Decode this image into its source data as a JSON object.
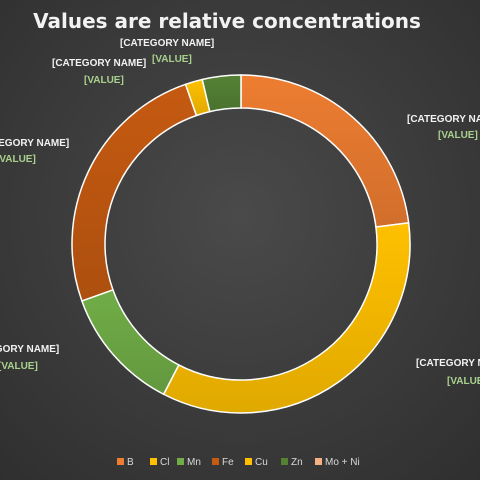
{
  "chart_data": {
    "type": "pie",
    "title": "Values are relative concentrations",
    "style": "doughnut",
    "legend_position": "bottom",
    "categories": [
      "B",
      "Cl",
      "Mn",
      "Fe",
      "Cu",
      "Zn",
      "Mo + Ni"
    ],
    "values": [
      22.5,
      33.8,
      11.7,
      24.6,
      1.6,
      3.6,
      0
    ],
    "colors": [
      "#ed7d31",
      "#ffc000",
      "#70ad47",
      "#c55a11",
      "#ffc000",
      "#548235",
      "#f4b183"
    ],
    "data_labels": [
      {
        "category": "[CATEGORY NAME]",
        "value": "[VALUE]"
      },
      {
        "category": "[CATEGORY NAME]",
        "value": "[VALUE]"
      },
      {
        "category": "[CATEGORY NAME]",
        "value": "[VALUE]"
      },
      {
        "category": "[CATEGORY NAME]",
        "value": "[VALUE]"
      },
      {
        "category": "[CATEGORY NAME]",
        "value": "[VALUE]"
      },
      {
        "category": "[CATEGORY NAME]",
        "value": "[VALUE]"
      }
    ]
  }
}
